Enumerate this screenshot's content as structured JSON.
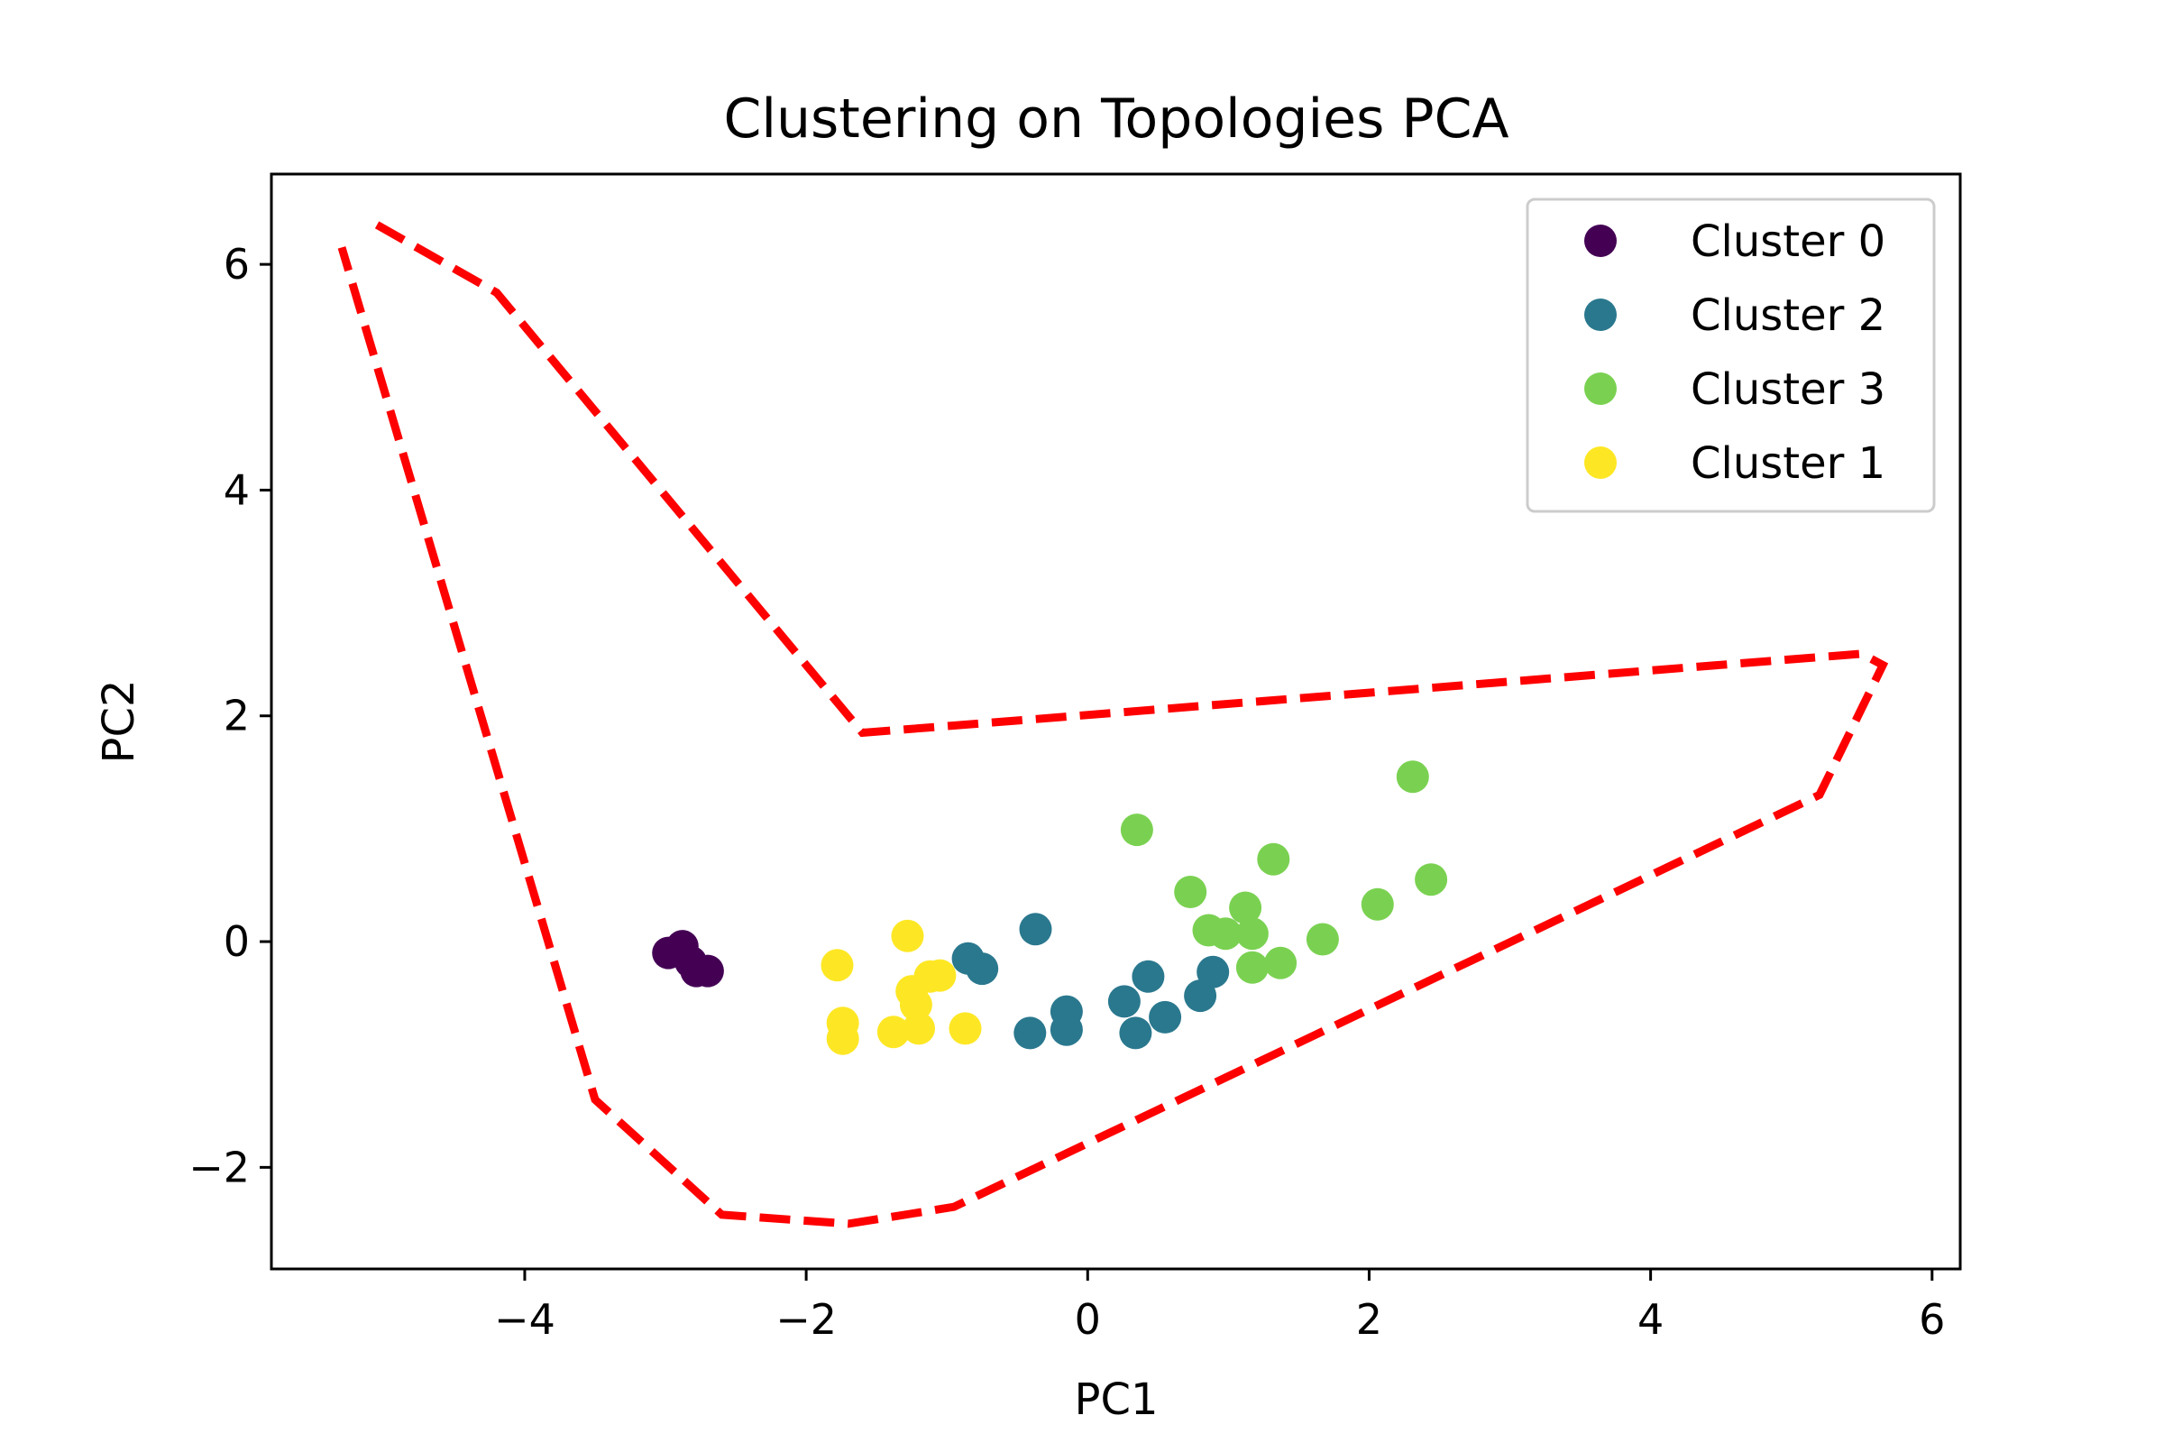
{
  "chart_data": {
    "type": "scatter",
    "title": "Clustering on Topologies PCA",
    "xlabel": "PC1",
    "ylabel": "PC2",
    "xlim": [
      -5.8,
      6.2
    ],
    "ylim": [
      -2.9,
      6.8
    ],
    "xticks": [
      -4,
      -2,
      0,
      2,
      4,
      6
    ],
    "yticks": [
      -2,
      0,
      2,
      4,
      6
    ],
    "xtick_labels": [
      "−4",
      "−2",
      "0",
      "2",
      "4",
      "6"
    ],
    "ytick_labels": [
      "−2",
      "0",
      "2",
      "4",
      "6"
    ],
    "grid": false,
    "legend_position": "top-right",
    "series": [
      {
        "name": "Cluster 0",
        "color": "#440154",
        "points": [
          [
            -2.98,
            -0.1
          ],
          [
            -2.88,
            -0.04
          ],
          [
            -2.82,
            -0.18
          ],
          [
            -2.78,
            -0.26
          ],
          [
            -2.7,
            -0.26
          ]
        ]
      },
      {
        "name": "Cluster 2",
        "color": "#2a788e",
        "points": [
          [
            -0.37,
            0.11
          ],
          [
            -0.85,
            -0.15
          ],
          [
            -0.75,
            -0.24
          ],
          [
            -0.41,
            -0.81
          ],
          [
            -0.15,
            -0.62
          ],
          [
            -0.15,
            -0.78
          ],
          [
            0.26,
            -0.53
          ],
          [
            0.34,
            -0.81
          ],
          [
            0.43,
            -0.31
          ],
          [
            0.55,
            -0.67
          ],
          [
            0.8,
            -0.48
          ],
          [
            0.89,
            -0.27
          ]
        ]
      },
      {
        "name": "Cluster 3",
        "color": "#7ad151",
        "points": [
          [
            0.35,
            0.99
          ],
          [
            0.73,
            0.44
          ],
          [
            0.86,
            0.1
          ],
          [
            0.98,
            0.07
          ],
          [
            1.12,
            0.3
          ],
          [
            1.17,
            0.07
          ],
          [
            1.17,
            -0.23
          ],
          [
            1.32,
            0.73
          ],
          [
            1.37,
            -0.19
          ],
          [
            1.67,
            0.02
          ],
          [
            2.06,
            0.33
          ],
          [
            2.31,
            1.46
          ],
          [
            2.44,
            0.55
          ]
        ]
      },
      {
        "name": "Cluster 1",
        "color": "#fde725",
        "points": [
          [
            -1.78,
            -0.21
          ],
          [
            -1.74,
            -0.72
          ],
          [
            -1.74,
            -0.86
          ],
          [
            -1.38,
            -0.8
          ],
          [
            -1.28,
            0.05
          ],
          [
            -1.25,
            -0.44
          ],
          [
            -1.22,
            -0.56
          ],
          [
            -1.2,
            -0.77
          ],
          [
            -1.12,
            -0.31
          ],
          [
            -1.05,
            -0.3
          ],
          [
            -0.87,
            -0.77
          ]
        ]
      }
    ],
    "boundary": {
      "color": "#ff0000",
      "style": "dashed",
      "points": [
        [
          -5.05,
          6.35
        ],
        [
          -4.2,
          5.75
        ],
        [
          -1.6,
          1.85
        ],
        [
          5.5,
          2.55
        ],
        [
          5.65,
          2.45
        ],
        [
          5.2,
          1.3
        ],
        [
          -0.95,
          -2.35
        ],
        [
          -1.7,
          -2.5
        ],
        [
          -2.6,
          -2.42
        ],
        [
          -3.5,
          -1.4
        ],
        [
          -5.3,
          6.15
        ]
      ]
    }
  }
}
